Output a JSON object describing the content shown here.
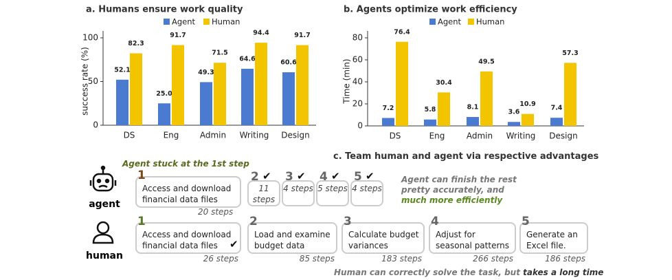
{
  "chart_data": [
    {
      "type": "bar",
      "title": "a. Humans ensure work quality",
      "y_label": "success rate (%)",
      "categories": [
        "DS",
        "Eng",
        "Admin",
        "Writing",
        "Design"
      ],
      "series": [
        {
          "name": "Agent",
          "color": "#4a7bd0",
          "values": [
            52.1,
            25.0,
            49.3,
            64.6,
            60.6
          ],
          "value_labels": [
            "52.1",
            "25.0",
            "49.3",
            "64.6",
            "60.6"
          ]
        },
        {
          "name": "Human",
          "color": "#f2c500",
          "values": [
            82.3,
            91.7,
            71.5,
            94.4,
            91.7
          ],
          "value_labels": [
            "82.3",
            "91.7",
            "71.5",
            "94.4",
            "91.7"
          ]
        }
      ],
      "ylim": [
        0,
        100
      ],
      "yticks": [
        0,
        50,
        100
      ],
      "grid": false
    },
    {
      "type": "bar",
      "title": "b. Agents optimize work efficiency",
      "y_label": "Time (min)",
      "categories": [
        "DS",
        "Eng",
        "Admin",
        "Writing",
        "Design"
      ],
      "series": [
        {
          "name": "Agent",
          "color": "#4a7bd0",
          "values": [
            7.2,
            5.8,
            8.1,
            3.6,
            7.4
          ],
          "value_labels": [
            "7.2",
            "5.8",
            "8.1",
            "3.6",
            "7.4"
          ]
        },
        {
          "name": "Human",
          "color": "#f2c500",
          "values": [
            76.4,
            30.4,
            49.5,
            10.9,
            57.3
          ],
          "value_labels": [
            "76.4",
            "30.4",
            "49.5",
            "10.9",
            "57.3"
          ]
        }
      ],
      "ylim": [
        0,
        80
      ],
      "yticks": [
        0,
        20,
        40,
        60,
        80
      ],
      "grid": false
    }
  ],
  "diagram": {
    "title": "c. Team human and agent via respective advantages",
    "agent": {
      "label": "agent",
      "stuck_note": "Agent stuck at the 1st step",
      "first": {
        "number": 1,
        "task": "Access and download financial data files",
        "steps": "20 steps"
      },
      "rest": [
        {
          "number": 2,
          "steps": "11 steps"
        },
        {
          "number": 3,
          "steps": "4 steps"
        },
        {
          "number": 4,
          "steps": "5 steps"
        },
        {
          "number": 5,
          "steps": "4 steps"
        }
      ],
      "note": "Agent can finish the rest pretty accurately, and",
      "note_emphasis": "much more efficiently"
    },
    "human": {
      "label": "human",
      "tasks": [
        {
          "number": 1,
          "task": "Access and download financial data files",
          "steps": "26 steps"
        },
        {
          "number": 2,
          "task": "Load and examine budget data",
          "steps": "85 steps"
        },
        {
          "number": 3,
          "task": "Calculate budget variances",
          "steps": "183 steps"
        },
        {
          "number": 4,
          "task": "Adjust for seasonal patterns",
          "steps": "266 steps"
        },
        {
          "number": 5,
          "task": "Generate an Excel file.",
          "steps": "186 steps"
        }
      ],
      "note": "Human can correctly solve the task, but ",
      "note_emphasis": "takes a long time"
    }
  }
}
